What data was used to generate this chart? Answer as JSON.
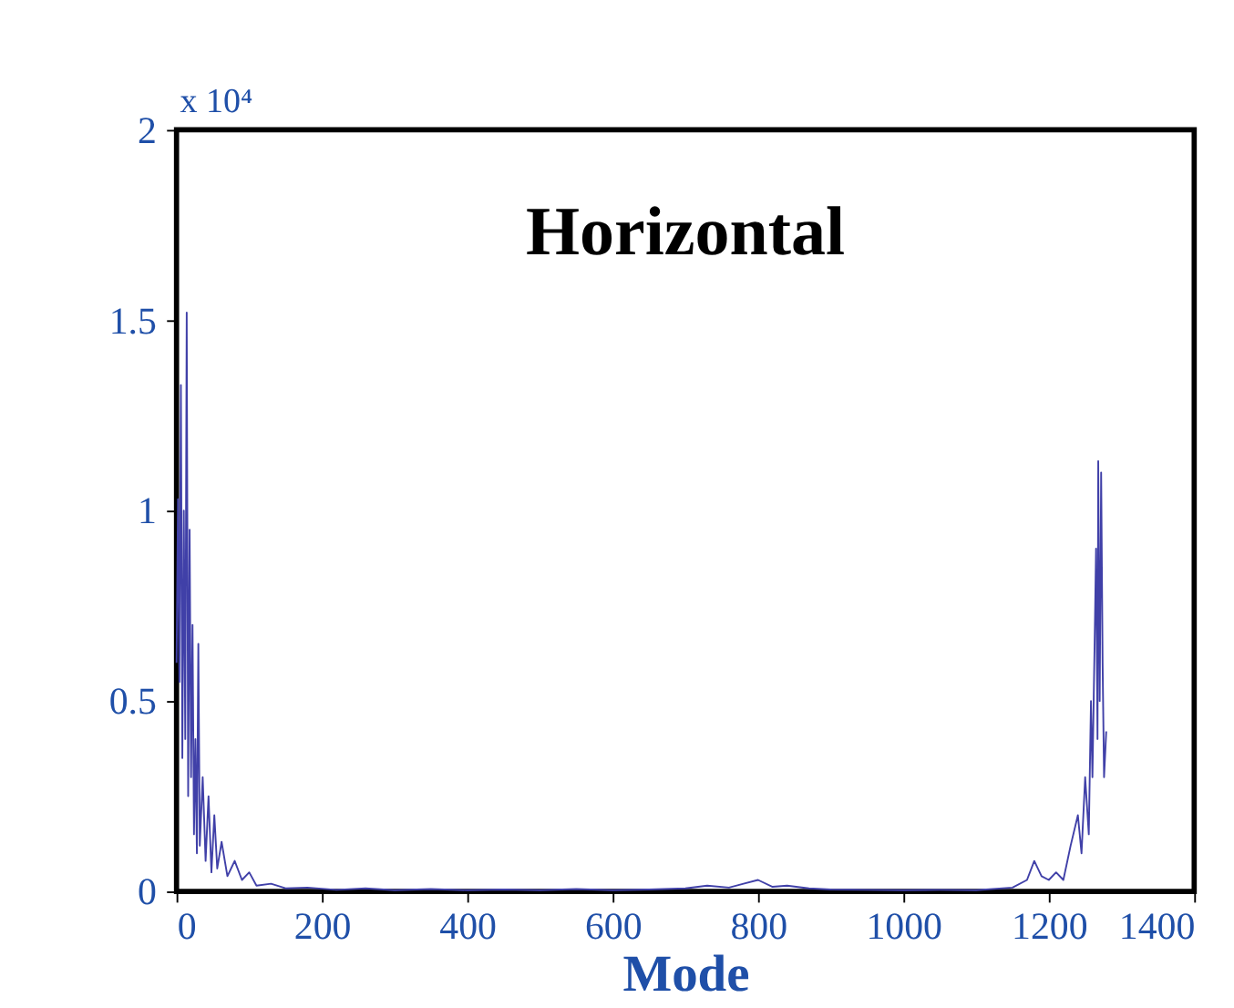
{
  "chart_data": {
    "type": "line",
    "xlabel": "Mode",
    "annotations": [
      "x 10⁴",
      "Horizontal"
    ],
    "xlim": [
      0,
      1400
    ],
    "xticks": [
      0,
      200,
      400,
      600,
      800,
      1000,
      1200,
      1400
    ],
    "ylim": [
      0,
      2
    ],
    "yticks": [
      0,
      0.5,
      1,
      1.5,
      2
    ],
    "grid": false,
    "legend": false,
    "marker": "none",
    "line_style": "solid",
    "series": [
      {
        "color": "#4040a8",
        "x": [
          0,
          2,
          4,
          6,
          8,
          10,
          12,
          14,
          16,
          18,
          20,
          22,
          24,
          26,
          28,
          30,
          32,
          36,
          40,
          44,
          48,
          52,
          56,
          62,
          70,
          80,
          90,
          100,
          110,
          130,
          150,
          180,
          220,
          260,
          300,
          350,
          400,
          450,
          500,
          550,
          600,
          650,
          700,
          730,
          760,
          780,
          800,
          820,
          840,
          870,
          900,
          950,
          1000,
          1050,
          1100,
          1150,
          1170,
          1180,
          1190,
          1200,
          1210,
          1220,
          1230,
          1240,
          1245,
          1250,
          1255,
          1258,
          1260,
          1263,
          1265,
          1267,
          1268,
          1270,
          1272,
          1274,
          1276,
          1279
        ],
        "values": [
          0.6,
          1.03,
          0.55,
          1.33,
          0.35,
          1.0,
          0.4,
          1.52,
          0.25,
          0.95,
          0.3,
          0.7,
          0.15,
          0.4,
          0.1,
          0.65,
          0.12,
          0.3,
          0.08,
          0.25,
          0.05,
          0.2,
          0.06,
          0.13,
          0.04,
          0.08,
          0.03,
          0.05,
          0.015,
          0.02,
          0.008,
          0.01,
          0.004,
          0.008,
          0.003,
          0.006,
          0.003,
          0.005,
          0.003,
          0.006,
          0.003,
          0.005,
          0.008,
          0.015,
          0.01,
          0.02,
          0.03,
          0.012,
          0.015,
          0.008,
          0.005,
          0.004,
          0.003,
          0.004,
          0.003,
          0.01,
          0.03,
          0.08,
          0.04,
          0.03,
          0.05,
          0.03,
          0.12,
          0.2,
          0.1,
          0.3,
          0.15,
          0.5,
          0.3,
          0.65,
          0.9,
          0.4,
          1.13,
          0.5,
          1.1,
          0.6,
          0.3,
          0.42
        ]
      }
    ]
  }
}
